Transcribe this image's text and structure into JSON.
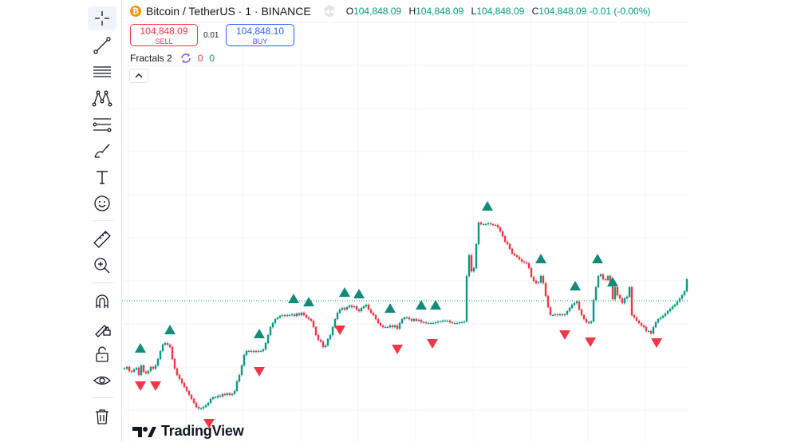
{
  "header": {
    "title": "Bitcoin / TetherUS · 1 · BINANCE",
    "ohlc": [
      {
        "label": "O",
        "value": "104,848.09"
      },
      {
        "label": "H",
        "value": "104,848.09"
      },
      {
        "label": "L",
        "value": "104,848.09"
      },
      {
        "label": "C",
        "value": "104,848.09 -0.01 (-0.00%)"
      }
    ]
  },
  "trade": {
    "sell_price": "104,848.09",
    "sell_label": "SELL",
    "spread": "0.01",
    "buy_price": "104,848.10",
    "buy_label": "BUY"
  },
  "indicator": {
    "name": "Fractals 2",
    "value_down": "0",
    "value_up": "0"
  },
  "watermark": "TradingView",
  "toolbar": {
    "tools": [
      "crosshair-icon",
      "trend-line-icon",
      "horizontal-lines-icon",
      "pattern-icon",
      "fib-retracement-icon",
      "brush-icon",
      "text-icon",
      "emoji-icon",
      "ruler-icon",
      "zoom-in-icon",
      "magnet-icon",
      "lock-drawing-icon",
      "unlock-icon",
      "eye-icon",
      "trash-icon"
    ]
  },
  "colors": {
    "up": "#089981",
    "down": "#f23645",
    "last_price_line": "#089981",
    "grid": "#f0f3fa"
  },
  "chart_data": {
    "type": "candlestick",
    "symbol": "Bitcoin / TetherUS",
    "interval": "1",
    "exchange": "BINANCE",
    "last_price": 104848.09,
    "close_path": [
      [
        0,
        462
      ],
      [
        3,
        460
      ],
      [
        6,
        465
      ],
      [
        9,
        466
      ],
      [
        12,
        463
      ],
      [
        15,
        461
      ],
      [
        18,
        470
      ],
      [
        21,
        458
      ],
      [
        24,
        466
      ],
      [
        27,
        468
      ],
      [
        30,
        465
      ],
      [
        33,
        460
      ],
      [
        36,
        462
      ],
      [
        39,
        458
      ],
      [
        42,
        450
      ],
      [
        45,
        440
      ],
      [
        48,
        432
      ],
      [
        51,
        430
      ],
      [
        54,
        432
      ],
      [
        57,
        435
      ],
      [
        60,
        450
      ],
      [
        63,
        462
      ],
      [
        66,
        470
      ],
      [
        69,
        475
      ],
      [
        72,
        480
      ],
      [
        75,
        485
      ],
      [
        78,
        490
      ],
      [
        81,
        495
      ],
      [
        84,
        500
      ],
      [
        87,
        505
      ],
      [
        90,
        510
      ],
      [
        93,
        512
      ],
      [
        96,
        512
      ],
      [
        99,
        510
      ],
      [
        102,
        508
      ],
      [
        105,
        505
      ],
      [
        108,
        500
      ],
      [
        111,
        498
      ],
      [
        114,
        498
      ],
      [
        117,
        496
      ],
      [
        120,
        497
      ],
      [
        123,
        494
      ],
      [
        126,
        495
      ],
      [
        129,
        493
      ],
      [
        132,
        495
      ],
      [
        135,
        494
      ],
      [
        138,
        490
      ],
      [
        141,
        478
      ],
      [
        144,
        470
      ],
      [
        147,
        458
      ],
      [
        150,
        445
      ],
      [
        153,
        440
      ],
      [
        156,
        440
      ],
      [
        159,
        441
      ],
      [
        162,
        440
      ],
      [
        165,
        441
      ],
      [
        168,
        440
      ],
      [
        171,
        440
      ],
      [
        174,
        438
      ],
      [
        177,
        430
      ],
      [
        180,
        420
      ],
      [
        183,
        410
      ],
      [
        186,
        405
      ],
      [
        189,
        400
      ],
      [
        192,
        398
      ],
      [
        195,
        396
      ],
      [
        198,
        395
      ],
      [
        201,
        396
      ],
      [
        204,
        395
      ],
      [
        207,
        395
      ],
      [
        210,
        394
      ],
      [
        213,
        396
      ],
      [
        216,
        393
      ],
      [
        219,
        395
      ],
      [
        222,
        392
      ],
      [
        225,
        395
      ],
      [
        228,
        398
      ],
      [
        231,
        400
      ],
      [
        234,
        402
      ],
      [
        237,
        410
      ],
      [
        240,
        420
      ],
      [
        243,
        426
      ],
      [
        246,
        428
      ],
      [
        249,
        435
      ],
      [
        252,
        433
      ],
      [
        255,
        425
      ],
      [
        258,
        420
      ],
      [
        261,
        410
      ],
      [
        264,
        400
      ],
      [
        267,
        392
      ],
      [
        270,
        388
      ],
      [
        273,
        386
      ],
      [
        276,
        388
      ],
      [
        279,
        385
      ],
      [
        282,
        383
      ],
      [
        285,
        385
      ],
      [
        288,
        384
      ],
      [
        291,
        388
      ],
      [
        294,
        390
      ],
      [
        297,
        386
      ],
      [
        300,
        384
      ],
      [
        303,
        382
      ],
      [
        306,
        388
      ],
      [
        309,
        392
      ],
      [
        312,
        395
      ],
      [
        315,
        400
      ],
      [
        318,
        405
      ],
      [
        321,
        408
      ],
      [
        324,
        410
      ],
      [
        327,
        410
      ],
      [
        330,
        410
      ],
      [
        333,
        408
      ],
      [
        336,
        410
      ],
      [
        339,
        408
      ],
      [
        342,
        412
      ],
      [
        345,
        405
      ],
      [
        348,
        400
      ],
      [
        351,
        398
      ],
      [
        354,
        398
      ],
      [
        357,
        400
      ],
      [
        360,
        402
      ],
      [
        363,
        400
      ],
      [
        366,
        402
      ],
      [
        369,
        401
      ],
      [
        372,
        404
      ],
      [
        375,
        404
      ],
      [
        378,
        405
      ],
      [
        381,
        405
      ],
      [
        384,
        405
      ],
      [
        387,
        405
      ],
      [
        390,
        404
      ],
      [
        393,
        403
      ],
      [
        396,
        403
      ],
      [
        399,
        402
      ],
      [
        402,
        402
      ],
      [
        405,
        402
      ],
      [
        408,
        404
      ],
      [
        411,
        405
      ],
      [
        414,
        405
      ],
      [
        417,
        405
      ],
      [
        420,
        404
      ],
      [
        423,
        404
      ],
      [
        426,
        403
      ],
      [
        429,
        346
      ],
      [
        432,
        320
      ],
      [
        435,
        340
      ],
      [
        438,
        336
      ],
      [
        441,
        306
      ],
      [
        444,
        279
      ],
      [
        447,
        281
      ],
      [
        450,
        281
      ],
      [
        453,
        281
      ],
      [
        456,
        280
      ],
      [
        459,
        281
      ],
      [
        462,
        282
      ],
      [
        465,
        282
      ],
      [
        468,
        285
      ],
      [
        471,
        290
      ],
      [
        474,
        296
      ],
      [
        477,
        303
      ],
      [
        480,
        306
      ],
      [
        483,
        312
      ],
      [
        486,
        318
      ],
      [
        489,
        320
      ],
      [
        492,
        322
      ],
      [
        495,
        325
      ],
      [
        498,
        328
      ],
      [
        501,
        329
      ],
      [
        504,
        330
      ],
      [
        507,
        336
      ],
      [
        510,
        347
      ],
      [
        513,
        352
      ],
      [
        516,
        355
      ],
      [
        519,
        354
      ],
      [
        522,
        346
      ],
      [
        525,
        355
      ],
      [
        528,
        371
      ],
      [
        531,
        385
      ],
      [
        534,
        395
      ],
      [
        537,
        395
      ],
      [
        540,
        394
      ],
      [
        543,
        395
      ],
      [
        546,
        394
      ],
      [
        549,
        395
      ],
      [
        552,
        394
      ],
      [
        555,
        390
      ],
      [
        558,
        386
      ],
      [
        561,
        382
      ],
      [
        564,
        380
      ],
      [
        567,
        378
      ],
      [
        570,
        388
      ],
      [
        573,
        395
      ],
      [
        576,
        400
      ],
      [
        579,
        404
      ],
      [
        582,
        405
      ],
      [
        585,
        403
      ],
      [
        588,
        376
      ],
      [
        591,
        360
      ],
      [
        594,
        346
      ],
      [
        597,
        344
      ],
      [
        600,
        350
      ],
      [
        603,
        351
      ],
      [
        606,
        346
      ],
      [
        609,
        358
      ],
      [
        612,
        375
      ],
      [
        615,
        360
      ],
      [
        618,
        370
      ],
      [
        621,
        374
      ],
      [
        624,
        380
      ],
      [
        627,
        374
      ],
      [
        630,
        372
      ],
      [
        633,
        360
      ],
      [
        636,
        395
      ],
      [
        639,
        398
      ],
      [
        642,
        402
      ],
      [
        645,
        405
      ],
      [
        648,
        408
      ],
      [
        651,
        410
      ],
      [
        654,
        415
      ],
      [
        657,
        415
      ],
      [
        660,
        418
      ],
      [
        663,
        410
      ],
      [
        666,
        404
      ],
      [
        669,
        400
      ],
      [
        672,
        398
      ],
      [
        675,
        396
      ],
      [
        678,
        393
      ],
      [
        681,
        390
      ],
      [
        684,
        387
      ],
      [
        687,
        384
      ],
      [
        690,
        382
      ],
      [
        693,
        378
      ],
      [
        696,
        374
      ],
      [
        699,
        370
      ],
      [
        702,
        365
      ],
      [
        705,
        350
      ]
    ],
    "fractals_up_x": [
      20,
      57,
      169,
      212,
      231,
      276,
      294,
      333,
      372,
      390,
      455,
      522,
      565,
      593,
      612
    ],
    "fractals_down_x": [
      20,
      39,
      106,
      169,
      270,
      342,
      386,
      552,
      584,
      667
    ]
  }
}
